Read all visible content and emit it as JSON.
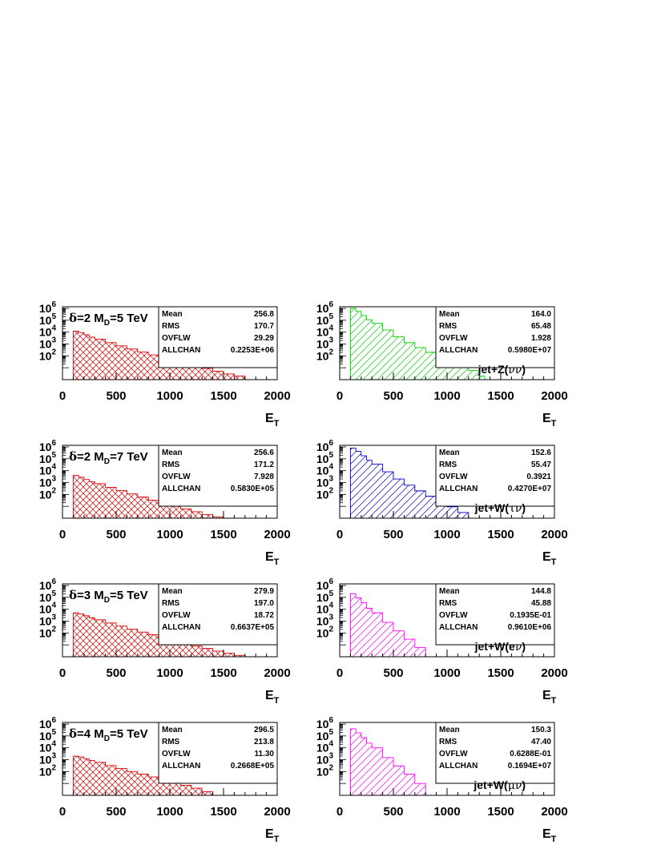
{
  "stat_labels": [
    "Mean",
    "RMS",
    "OVFLW",
    "ALLCHAN"
  ],
  "x_axis_title": "E",
  "x_axis_title_sub": "T",
  "x_ticks": [
    "0",
    "500",
    "1000",
    "1500",
    "2000"
  ],
  "y_ticks": [
    {
      "base": "10",
      "exp": "6"
    },
    {
      "base": "10",
      "exp": "5"
    },
    {
      "base": "10",
      "exp": "4"
    },
    {
      "base": "10",
      "exp": "3"
    },
    {
      "base": "10",
      "exp": "2"
    }
  ],
  "chart_data": [
    {
      "type": "histogram",
      "hatch": "cross",
      "color": "#dd0000",
      "title": {
        "sym": "δ",
        "text": "=2 M",
        "sub": "D",
        "rest": "=5 TeV"
      },
      "stats": [
        "256.8",
        "170.7",
        "29.29",
        "0.2253E+06"
      ],
      "xlim": [
        0,
        2000
      ],
      "ylog": true,
      "x": [
        100,
        150,
        200,
        250,
        300,
        400,
        500,
        600,
        700,
        800,
        900,
        1000,
        1100,
        1200,
        1300,
        1400,
        1500,
        1600,
        1700,
        1800
      ],
      "y": [
        12000,
        9000,
        6000,
        3800,
        2500,
        1300,
        700,
        380,
        210,
        120,
        70,
        40,
        25,
        15,
        9,
        5,
        3,
        2,
        1,
        1
      ]
    },
    {
      "type": "histogram",
      "hatch": "diag",
      "color": "#00cc00",
      "title": {
        "text": "jet+Z(",
        "sym": "νν",
        "rest": ")"
      },
      "stats": [
        "164.0",
        "65.48",
        "1.928",
        "0.5980E+07"
      ],
      "xlim": [
        0,
        2000
      ],
      "ylog": true,
      "x": [
        100,
        150,
        200,
        250,
        300,
        400,
        500,
        600,
        700,
        800,
        900,
        1000,
        1100,
        1200,
        1300
      ],
      "y": [
        1000000,
        550000,
        250000,
        110000,
        55000,
        15000,
        4000,
        1300,
        500,
        200,
        80,
        35,
        15,
        6,
        2
      ]
    },
    {
      "type": "histogram",
      "hatch": "cross",
      "color": "#dd0000",
      "title": {
        "sym": "δ",
        "text": "=2 M",
        "sub": "D",
        "rest": "=7 TeV"
      },
      "stats": [
        "256.6",
        "171.2",
        "7.928",
        "0.5830E+05"
      ],
      "xlim": [
        0,
        2000
      ],
      "ylog": true,
      "x": [
        100,
        150,
        200,
        250,
        300,
        400,
        500,
        600,
        700,
        800,
        900,
        1000,
        1100,
        1200,
        1300,
        1400,
        1500,
        1600
      ],
      "y": [
        4000,
        2800,
        1800,
        1200,
        800,
        400,
        210,
        110,
        60,
        33,
        18,
        10,
        6,
        3.5,
        2,
        1.3,
        1,
        1
      ]
    },
    {
      "type": "histogram",
      "hatch": "diag",
      "color": "#0000cc",
      "title": {
        "text": "jet+W(",
        "sym": "τν",
        "rest": ")"
      },
      "stats": [
        "152.6",
        "55.47",
        "0.3921",
        "0.4270E+07"
      ],
      "xlim": [
        0,
        2000
      ],
      "ylog": true,
      "x": [
        100,
        150,
        200,
        250,
        300,
        400,
        500,
        600,
        700,
        800,
        900,
        1000,
        1100,
        1200
      ],
      "y": [
        800000,
        420000,
        180000,
        75000,
        35000,
        8000,
        2000,
        600,
        200,
        70,
        25,
        9,
        3,
        1
      ]
    },
    {
      "type": "histogram",
      "hatch": "cross",
      "color": "#dd0000",
      "title": {
        "sym": "δ",
        "text": "=3 M",
        "sub": "D",
        "rest": "=5 TeV"
      },
      "stats": [
        "279.9",
        "197.0",
        "18.72",
        "0.6637E+05"
      ],
      "xlim": [
        0,
        2000
      ],
      "ylog": true,
      "x": [
        100,
        150,
        200,
        250,
        300,
        400,
        500,
        600,
        700,
        800,
        900,
        1000,
        1100,
        1200,
        1300,
        1400,
        1500,
        1600,
        1700
      ],
      "y": [
        5000,
        4000,
        2800,
        1900,
        1300,
        700,
        380,
        210,
        120,
        70,
        40,
        24,
        14,
        8,
        5,
        3,
        2,
        1.3,
        1
      ]
    },
    {
      "type": "histogram",
      "hatch": "diag",
      "color": "#ff00ff",
      "title": {
        "text": "jet+W(e",
        "sym": "ν",
        "rest": ")"
      },
      "stats": [
        "144.8",
        "45.88",
        "0.1935E-01",
        "0.9610E+06"
      ],
      "xlim": [
        0,
        2000
      ],
      "ylog": true,
      "x": [
        100,
        150,
        200,
        250,
        300,
        400,
        500,
        600,
        700,
        800
      ],
      "y": [
        200000,
        90000,
        35000,
        12000,
        5000,
        800,
        150,
        30,
        6,
        1
      ]
    },
    {
      "type": "histogram",
      "hatch": "cross",
      "color": "#dd0000",
      "title": {
        "sym": "δ",
        "text": "=4 M",
        "sub": "D",
        "rest": "=5 TeV"
      },
      "stats": [
        "296.5",
        "213.8",
        "11.30",
        "0.2668E+05"
      ],
      "xlim": [
        0,
        2000
      ],
      "ylog": true,
      "x": [
        100,
        150,
        200,
        250,
        300,
        400,
        500,
        600,
        700,
        800,
        900,
        1000,
        1100,
        1200,
        1300,
        1400
      ],
      "y": [
        2000,
        1700,
        1200,
        850,
        600,
        320,
        180,
        100,
        60,
        35,
        20,
        12,
        7,
        4,
        2,
        1
      ]
    },
    {
      "type": "histogram",
      "hatch": "diag",
      "color": "#ff00ff",
      "title": {
        "text": "jet+W(",
        "sym": "μν",
        "rest": ")"
      },
      "stats": [
        "150.3",
        "47.40",
        "0.6288E-01",
        "0.1694E+07"
      ],
      "xlim": [
        0,
        2000
      ],
      "ylog": true,
      "x": [
        100,
        150,
        200,
        250,
        300,
        400,
        500,
        600,
        700,
        800
      ],
      "y": [
        400000,
        180000,
        70000,
        25000,
        10000,
        1500,
        300,
        60,
        10,
        1
      ]
    }
  ]
}
